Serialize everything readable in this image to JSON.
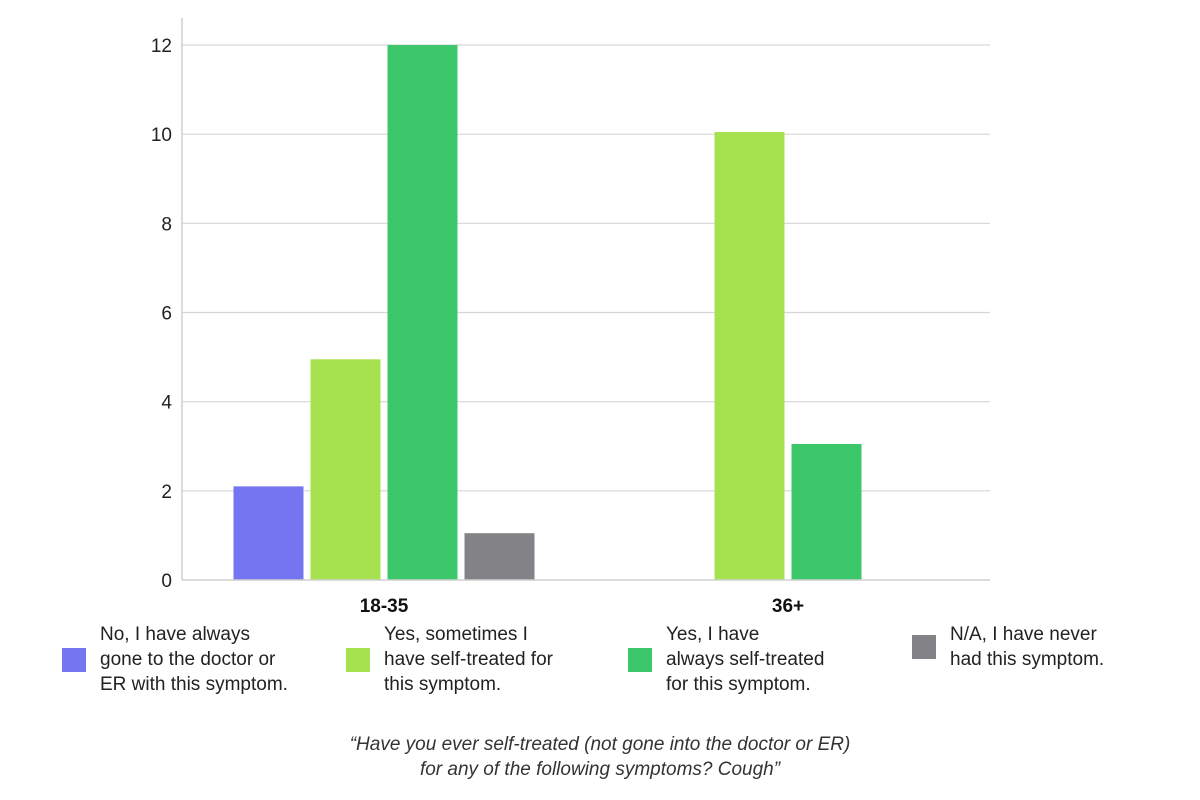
{
  "chart_data": {
    "type": "bar",
    "categories": [
      "18-35",
      "36+"
    ],
    "series": [
      {
        "name": "No, I have always gone to the doctor or ER with this symptom.",
        "values": [
          2.1,
          0
        ],
        "color": "#7575f2"
      },
      {
        "name": "Yes, sometimes I have self-treated for this symptom.",
        "values": [
          4.95,
          10.05
        ],
        "color": "#a6e250"
      },
      {
        "name": "Yes, I have always self-treated for this symptom.",
        "values": [
          12,
          3.05
        ],
        "color": "#3cc86a"
      },
      {
        "name": "N/A, I have never had this symptom.",
        "values": [
          1.05,
          0
        ],
        "color": "#838387"
      }
    ],
    "ylim": [
      0,
      12
    ],
    "yticks": [
      "0",
      "2",
      "4",
      "6",
      "8",
      "10",
      "12"
    ],
    "grid": true,
    "legend_position": "bottom",
    "caption_lines": [
      "“Have you ever self-treated (not gone into the doctor or ER)",
      "for any of the following symptoms? Cough”"
    ]
  },
  "legend": [
    {
      "label": "No, I have always\ngone to the doctor or\nER with this symptom.",
      "color": "#7575f2"
    },
    {
      "label": "Yes, sometimes I\nhave self-treated for\nthis symptom.",
      "color": "#a6e250"
    },
    {
      "label": "Yes, I have\nalways self-treated\nfor this symptom.",
      "color": "#3cc86a"
    },
    {
      "label": "N/A, I have never\nhad this symptom.",
      "color": "#838387"
    }
  ]
}
